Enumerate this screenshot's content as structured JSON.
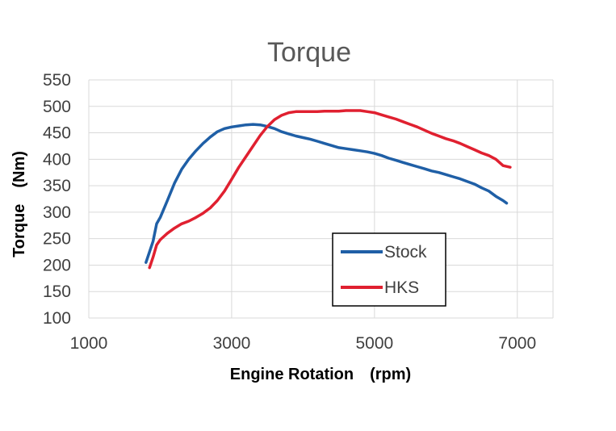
{
  "chart_data": {
    "type": "line",
    "title": "Torque",
    "xlabel": "Engine Rotation　(rpm)",
    "ylabel": "Torque　(Nm)",
    "xlim": [
      1000,
      7500
    ],
    "ylim": [
      100,
      550
    ],
    "xticks": [
      "1000",
      "3000",
      "5000",
      "7000"
    ],
    "xtick_values": [
      1000,
      3000,
      5000,
      7000
    ],
    "yticks": [
      "550",
      "500",
      "450",
      "400",
      "350",
      "300",
      "250",
      "200",
      "150",
      "100"
    ],
    "ytick_values": [
      550,
      500,
      450,
      400,
      350,
      300,
      250,
      200,
      150,
      100
    ],
    "grid": true,
    "legend_position": "bottom-right",
    "series": [
      {
        "name": "Stock",
        "color": "#1F5FA6",
        "x": [
          1800,
          1850,
          1900,
          1950,
          2000,
          2100,
          2200,
          2300,
          2400,
          2500,
          2600,
          2700,
          2800,
          2900,
          3000,
          3100,
          3200,
          3300,
          3400,
          3500,
          3600,
          3700,
          3800,
          3900,
          4000,
          4100,
          4200,
          4300,
          4400,
          4500,
          4600,
          4700,
          4800,
          4900,
          5000,
          5100,
          5200,
          5300,
          5400,
          5500,
          5600,
          5700,
          5800,
          5900,
          6000,
          6100,
          6200,
          6300,
          6400,
          6500,
          6600,
          6700,
          6800,
          6850
        ],
        "values": [
          205,
          225,
          245,
          278,
          290,
          322,
          355,
          381,
          400,
          416,
          430,
          442,
          452,
          458,
          461,
          463,
          465,
          466,
          465,
          462,
          458,
          452,
          448,
          444,
          441,
          438,
          434,
          430,
          426,
          422,
          420,
          418,
          416,
          414,
          411,
          407,
          402,
          398,
          394,
          390,
          386,
          382,
          378,
          375,
          371,
          367,
          363,
          358,
          353,
          346,
          340,
          330,
          322,
          317
        ]
      },
      {
        "name": "HKS",
        "color": "#E02030",
        "x": [
          1850,
          1900,
          1950,
          2000,
          2100,
          2200,
          2300,
          2400,
          2500,
          2600,
          2700,
          2800,
          2900,
          3000,
          3100,
          3200,
          3300,
          3400,
          3500,
          3600,
          3700,
          3800,
          3900,
          4000,
          4100,
          4200,
          4300,
          4400,
          4500,
          4600,
          4700,
          4800,
          4900,
          5000,
          5100,
          5200,
          5300,
          5400,
          5500,
          5600,
          5700,
          5800,
          5900,
          6000,
          6100,
          6200,
          6300,
          6400,
          6500,
          6600,
          6700,
          6800,
          6900
        ],
        "values": [
          195,
          215,
          238,
          248,
          260,
          270,
          278,
          283,
          290,
          298,
          308,
          322,
          340,
          362,
          385,
          405,
          425,
          445,
          462,
          475,
          483,
          488,
          490,
          490,
          490,
          490,
          491,
          491,
          491,
          492,
          492,
          492,
          490,
          488,
          484,
          480,
          476,
          471,
          466,
          461,
          455,
          449,
          444,
          439,
          435,
          430,
          424,
          418,
          412,
          407,
          400,
          388,
          385
        ]
      }
    ]
  }
}
